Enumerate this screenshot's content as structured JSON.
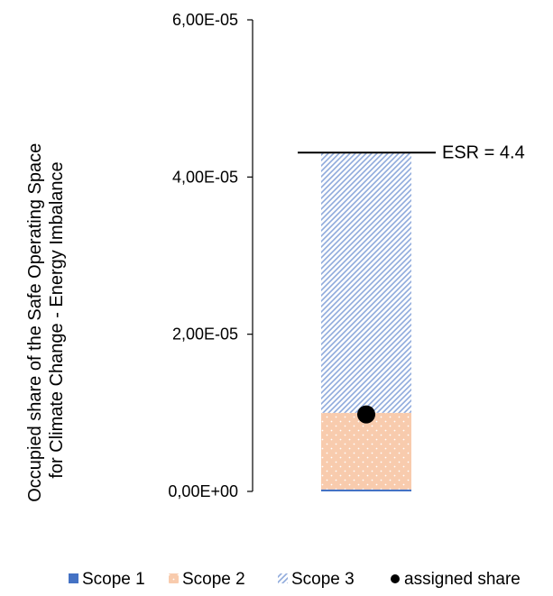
{
  "chart_data": {
    "type": "bar",
    "stacked": true,
    "categories": [
      ""
    ],
    "series": [
      {
        "name": "Scope 1",
        "values": [
          2.5e-07
        ],
        "color": "#4472C4",
        "pattern": "solid"
      },
      {
        "name": "Scope 2",
        "values": [
          9.75e-06
        ],
        "color": "#F8CBAD",
        "pattern": "dotted"
      },
      {
        "name": "Scope 3",
        "values": [
          3.31e-05
        ],
        "color": "#8FAADC",
        "pattern": "diagonal-hatch"
      }
    ],
    "markers": [
      {
        "name": "assigned share",
        "value": 9.8e-06,
        "color": "#000000"
      }
    ],
    "reference_line": {
      "value": 4.31e-05,
      "label": "ESR = 4.4"
    },
    "ylabel_lines": [
      "Occupied share of the Safe Operating Space",
      "for Climate Change - Energy Imbalance"
    ],
    "yticks": [
      0,
      2e-05,
      4e-05,
      6e-05
    ],
    "ytick_labels": [
      "0,00E+00",
      "2,00E-05",
      "4,00E-05",
      "6,00E-05"
    ],
    "ylim": [
      0,
      6e-05
    ],
    "grid": false,
    "legend": {
      "position": "bottom",
      "entries": [
        "Scope 1",
        "Scope 2",
        "Scope 3",
        "assigned share"
      ]
    }
  }
}
